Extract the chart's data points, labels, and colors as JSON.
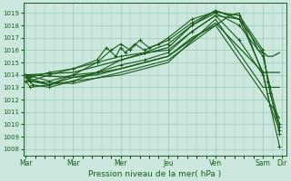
{
  "xlabel": "Pression niveau de la mer( hPa )",
  "ylim": [
    1007.5,
    1019.8
  ],
  "yticks": [
    1008,
    1009,
    1010,
    1011,
    1012,
    1013,
    1014,
    1015,
    1016,
    1017,
    1018,
    1019
  ],
  "xtick_labels": [
    "Mar",
    "Mar",
    "Mer",
    "Jeu",
    "Ven",
    "Sam",
    "Dir"
  ],
  "xtick_positions": [
    0,
    1.0,
    2.0,
    3.0,
    4.0,
    5.0,
    5.4
  ],
  "xlim": [
    -0.05,
    5.5
  ],
  "background_color": "#cce8de",
  "grid_color": "#9ac8b8",
  "line_color": "#1a5c1a",
  "lines": [
    {
      "x": [
        0.0,
        0.05,
        0.1,
        0.5,
        1.0,
        1.5,
        2.0,
        2.5,
        3.0,
        3.5,
        4.0,
        4.3,
        4.5,
        5.0
      ],
      "y": [
        1014.0,
        1013.8,
        1013.5,
        1013.2,
        1013.8,
        1014.0,
        1014.5,
        1015.0,
        1015.5,
        1017.0,
        1018.0,
        1018.8,
        1019.0,
        1014.0
      ],
      "marker": false,
      "lw": 0.9
    },
    {
      "x": [
        0.0,
        0.05,
        0.15,
        0.5,
        1.0,
        1.5,
        2.0,
        2.5,
        3.0,
        3.5,
        4.0,
        4.5,
        5.0,
        5.15,
        5.35
      ],
      "y": [
        1014.0,
        1013.6,
        1013.2,
        1013.0,
        1013.5,
        1014.2,
        1015.2,
        1015.8,
        1016.0,
        1017.5,
        1018.8,
        1018.5,
        1014.2,
        1011.5,
        1009.5
      ],
      "marker": true,
      "lw": 0.8
    },
    {
      "x": [
        0.0,
        0.1,
        0.5,
        1.0,
        1.5,
        1.7,
        1.9,
        2.0,
        2.1,
        2.3,
        2.5,
        3.0,
        3.5,
        4.0,
        4.5,
        5.0,
        5.15,
        5.35
      ],
      "y": [
        1013.8,
        1013.5,
        1014.0,
        1014.5,
        1015.2,
        1016.2,
        1015.5,
        1016.2,
        1015.8,
        1016.5,
        1016.0,
        1016.8,
        1018.2,
        1019.2,
        1018.5,
        1015.8,
        1012.5,
        1009.8
      ],
      "marker": true,
      "lw": 0.8
    },
    {
      "x": [
        0.0,
        0.1,
        0.5,
        1.0,
        1.5,
        1.8,
        2.0,
        2.2,
        2.4,
        2.6,
        2.8,
        3.0,
        3.5,
        4.0,
        4.5,
        5.0,
        5.1,
        5.35
      ],
      "y": [
        1013.5,
        1013.0,
        1013.2,
        1014.0,
        1015.0,
        1016.0,
        1016.5,
        1016.0,
        1016.8,
        1016.2,
        1016.5,
        1017.0,
        1018.5,
        1019.1,
        1018.8,
        1016.0,
        1013.5,
        1009.2
      ],
      "marker": true,
      "lw": 0.8
    },
    {
      "x": [
        0.0,
        0.1,
        0.5,
        1.0,
        1.5,
        2.0,
        2.5,
        3.0,
        3.5,
        4.0,
        4.5,
        5.0,
        5.15,
        5.35
      ],
      "y": [
        1014.0,
        1013.8,
        1014.2,
        1014.5,
        1015.0,
        1015.5,
        1015.8,
        1016.5,
        1018.0,
        1019.0,
        1018.0,
        1015.5,
        1013.0,
        1010.0
      ],
      "marker": true,
      "lw": 0.8
    },
    {
      "x": [
        0.0,
        0.5,
        1.0,
        1.5,
        2.0,
        2.5,
        3.0,
        3.5,
        4.0,
        4.5,
        5.0,
        5.35
      ],
      "y": [
        1014.0,
        1013.5,
        1014.0,
        1014.2,
        1014.8,
        1015.2,
        1015.8,
        1017.5,
        1018.8,
        1016.8,
        1014.0,
        1008.2
      ],
      "marker": true,
      "lw": 0.8
    },
    {
      "x": [
        0.0,
        1.0,
        2.0,
        3.0,
        3.5,
        4.0,
        4.5,
        4.7,
        4.9,
        5.0,
        5.1,
        5.2,
        5.35
      ],
      "y": [
        1014.0,
        1014.2,
        1015.2,
        1016.2,
        1018.0,
        1019.2,
        1018.5,
        1017.5,
        1016.0,
        1015.8,
        1015.5,
        1015.5,
        1015.8
      ],
      "marker": false,
      "lw": 0.9
    },
    {
      "x": [
        0.0,
        1.0,
        2.0,
        3.0,
        4.0,
        5.0,
        5.35
      ],
      "y": [
        1014.0,
        1013.8,
        1014.5,
        1015.5,
        1018.2,
        1014.2,
        1014.2
      ],
      "marker": false,
      "lw": 0.9
    },
    {
      "x": [
        0.0,
        0.5,
        1.0,
        2.0,
        3.0,
        4.0,
        5.0,
        5.35
      ],
      "y": [
        1013.8,
        1013.2,
        1013.5,
        1014.0,
        1015.0,
        1018.5,
        1013.0,
        1013.0
      ],
      "marker": false,
      "lw": 0.8
    },
    {
      "x": [
        0.0,
        1.0,
        2.0,
        3.0,
        4.0,
        5.0,
        5.35
      ],
      "y": [
        1013.5,
        1013.3,
        1014.2,
        1015.2,
        1018.0,
        1012.5,
        1010.5
      ],
      "marker": false,
      "lw": 0.8
    }
  ]
}
